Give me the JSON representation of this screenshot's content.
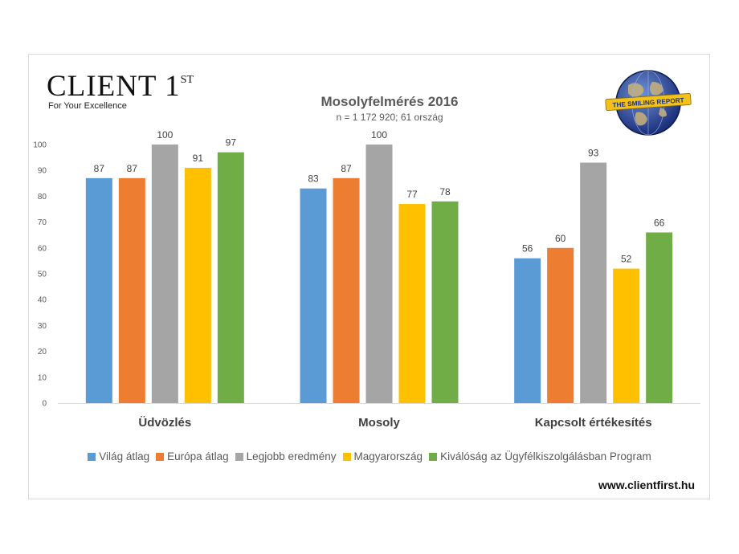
{
  "brand": {
    "name": "CLIENT 1",
    "superscript": "ST",
    "tagline": "For Your Excellence",
    "badge_text": "THE SMILING REPORT",
    "website": "www.clientfirst.hu"
  },
  "colors": {
    "world": "#5b9bd5",
    "europe": "#ed7d31",
    "best": "#a5a5a5",
    "hungary": "#ffc000",
    "program": "#70ad47"
  },
  "chart_data": {
    "type": "bar",
    "title": "Mosolyfelmérés 2016",
    "subtitle": "n = 1 172 920; 61 ország",
    "categories": [
      "Üdvözlés",
      "Mosoly",
      "Kapcsolt értékesítés"
    ],
    "series": [
      {
        "name": "Világ átlag",
        "color": "#5b9bd5",
        "values": [
          87,
          83,
          56
        ]
      },
      {
        "name": "Európa átlag",
        "color": "#ed7d31",
        "values": [
          87,
          87,
          60
        ]
      },
      {
        "name": "Legjobb eredmény",
        "color": "#a5a5a5",
        "values": [
          100,
          100,
          93
        ]
      },
      {
        "name": "Magyarország",
        "color": "#ffc000",
        "values": [
          91,
          77,
          52
        ]
      },
      {
        "name": "Kiválóság az Ügyfélkiszolgálásban Program",
        "color": "#70ad47",
        "values": [
          97,
          78,
          66
        ]
      }
    ],
    "yticks": [
      0,
      10,
      20,
      30,
      40,
      50,
      60,
      70,
      80,
      90,
      100
    ],
    "ylim": [
      0,
      100
    ],
    "grid": false,
    "legend_position": "bottom"
  }
}
